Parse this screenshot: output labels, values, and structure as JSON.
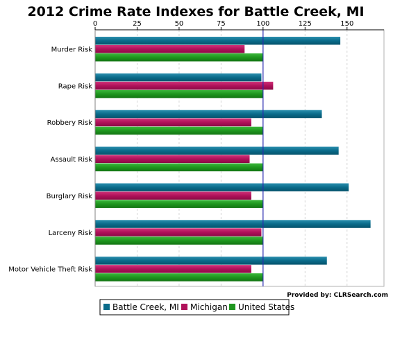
{
  "chart_data": {
    "type": "bar",
    "orientation": "horizontal",
    "title": "2012 Crime Rate Indexes for Battle Creek, MI",
    "credit": "Provided by: CLRSearch.com",
    "categories": [
      "Murder Risk",
      "Rape Risk",
      "Robbery Risk",
      "Assault Risk",
      "Burglary Risk",
      "Larceny Risk",
      "Motor Vehicle Theft Risk"
    ],
    "series": [
      {
        "name": "Battle Creek, MI",
        "color": "#0a6b8a",
        "values": [
          146,
          99,
          135,
          145,
          151,
          164,
          138
        ]
      },
      {
        "name": "Michigan",
        "color": "#b0115a",
        "values": [
          89,
          106,
          93,
          92,
          93,
          99,
          93
        ]
      },
      {
        "name": "United States",
        "color": "#1e961e",
        "values": [
          100,
          100,
          100,
          100,
          100,
          100,
          100
        ]
      }
    ],
    "xticks": [
      0,
      25,
      50,
      75,
      100,
      125,
      150
    ],
    "xtick_labels": [
      "0",
      "25",
      "50",
      "75",
      "100",
      "125",
      "150"
    ],
    "xlim": [
      0,
      172
    ],
    "reference_line": 100,
    "reference_color": "#2a2ab0",
    "grid": true,
    "legend_position": "bottom-left"
  }
}
